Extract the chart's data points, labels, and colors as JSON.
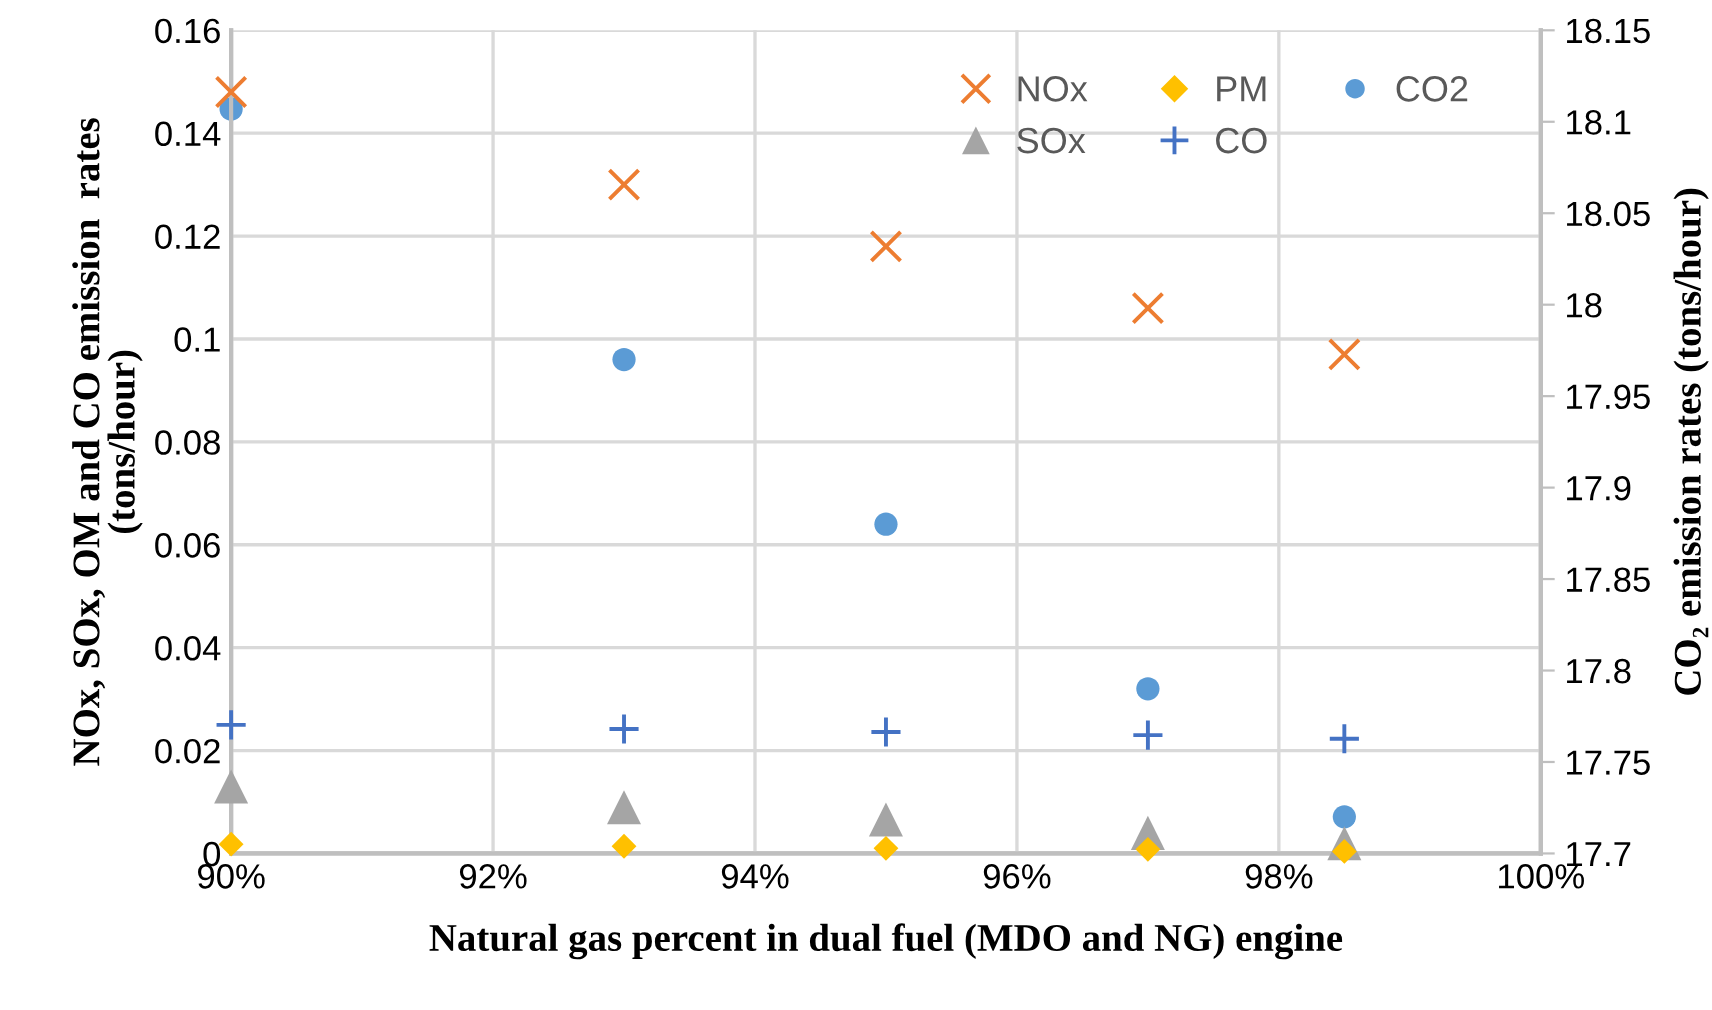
{
  "chart_data": {
    "type": "scatter",
    "xlabel": "Natural gas percent in dual fuel (MDO and NG) engine",
    "ylabel": "NOx, SOx, OM and CO emission  rates\n(tons/hour)",
    "y2label": "CO₂ emission rates (tons/hour)",
    "x": [
      90,
      93,
      95,
      97,
      98.5
    ],
    "xlim": [
      90,
      100
    ],
    "xticks": [
      {
        "value": 90,
        "label": "90%"
      },
      {
        "value": 92,
        "label": "92%"
      },
      {
        "value": 94,
        "label": "94%"
      },
      {
        "value": 96,
        "label": "96%"
      },
      {
        "value": 98,
        "label": "98%"
      },
      {
        "value": 100,
        "label": "100%"
      }
    ],
    "ylim": [
      0,
      0.16
    ],
    "yticks": [
      0,
      0.02,
      0.04,
      0.06,
      0.08,
      0.1,
      0.12,
      0.14,
      0.16
    ],
    "y2lim": [
      17.7,
      18.15
    ],
    "y2ticks": [
      17.7,
      17.75,
      17.8,
      17.85,
      17.9,
      17.95,
      18,
      18.05,
      18.1,
      18.15
    ],
    "grid": true,
    "legend": "top right",
    "series": [
      {
        "name": "NOx",
        "color": "#ed7d31",
        "marker": "cross",
        "values": [
          0.148,
          0.13,
          0.118,
          0.106,
          0.097
        ]
      },
      {
        "name": "SOx",
        "color": "#a5a5a5",
        "marker": "triangle",
        "values": [
          0.013,
          0.009,
          0.0066,
          0.004,
          0.002
        ]
      },
      {
        "name": "PM",
        "color": "#ffc000",
        "marker": "diamond",
        "values": [
          0.0018,
          0.0014,
          0.001,
          0.0008,
          0.0004
        ]
      },
      {
        "name": "CO",
        "color": "#4472c4",
        "marker": "plus",
        "values": [
          0.025,
          0.0242,
          0.0236,
          0.023,
          0.0223
        ]
      },
      {
        "name": "CO2",
        "color": "#5b9bd5",
        "marker": "circle",
        "axis": "y2",
        "values": [
          18.107,
          17.97,
          17.88,
          17.79,
          17.72
        ]
      }
    ]
  }
}
